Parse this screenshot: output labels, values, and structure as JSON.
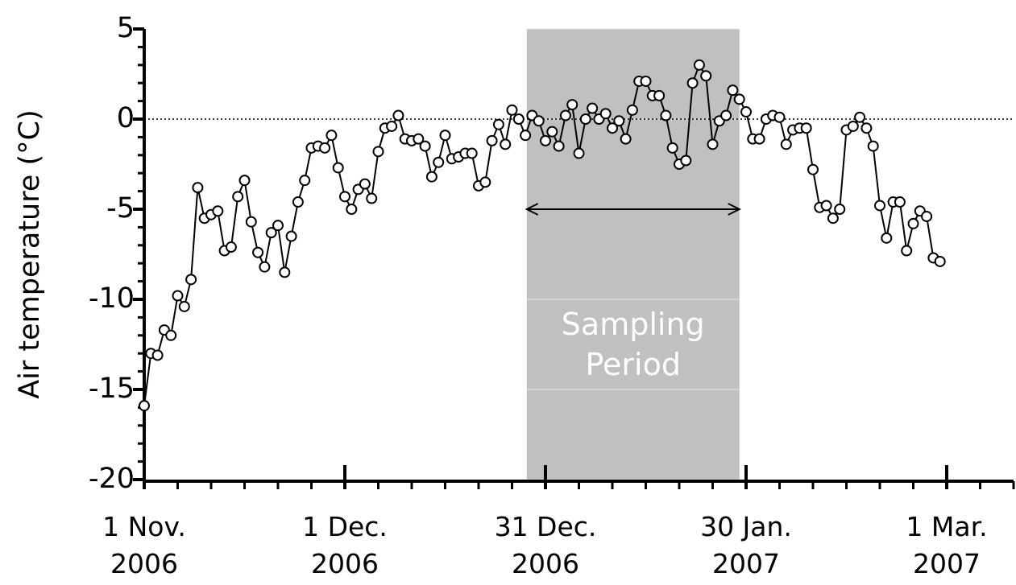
{
  "chart_data": {
    "type": "line",
    "y_label": "Air temperature (°C)",
    "x": [
      0,
      1,
      2,
      3,
      4,
      5,
      6,
      7,
      8,
      9,
      10,
      11,
      12,
      13,
      14,
      15,
      16,
      17,
      18,
      19,
      20,
      21,
      22,
      23,
      24,
      25,
      26,
      27,
      28,
      29,
      30,
      31,
      32,
      33,
      34,
      35,
      36,
      37,
      38,
      39,
      40,
      41,
      42,
      43,
      44,
      45,
      46,
      47,
      48,
      49,
      50,
      51,
      52,
      53,
      54,
      55,
      56,
      57,
      58,
      59,
      60,
      61,
      62,
      63,
      64,
      65,
      66,
      67,
      68,
      69,
      70,
      71,
      72,
      73,
      74,
      75,
      76,
      77,
      78,
      79,
      80,
      81,
      82,
      83,
      84,
      85,
      86,
      87,
      88,
      89,
      90,
      91,
      92,
      93,
      94,
      95,
      96,
      97,
      98,
      99,
      100,
      101,
      102,
      103,
      104,
      105,
      106,
      107,
      108,
      109,
      110,
      111,
      112,
      113,
      114,
      115,
      116,
      117,
      118,
      119
    ],
    "series": [
      {
        "color": "#000000",
        "values": [
          -15.9,
          -13.0,
          -13.1,
          -11.7,
          -12.0,
          -9.8,
          -10.4,
          -8.9,
          -3.8,
          -5.5,
          -5.3,
          -5.1,
          -7.3,
          -7.1,
          -4.3,
          -3.4,
          -5.7,
          -7.4,
          -8.2,
          -6.3,
          -5.9,
          -8.5,
          -6.5,
          -4.6,
          -3.4,
          -1.6,
          -1.5,
          -1.6,
          -0.9,
          -2.7,
          -4.3,
          -5.0,
          -3.9,
          -3.6,
          -4.4,
          -1.8,
          -0.5,
          -0.4,
          0.2,
          -1.1,
          -1.2,
          -1.1,
          -1.5,
          -3.2,
          -2.4,
          -0.9,
          -2.2,
          -2.1,
          -1.9,
          -1.9,
          -3.7,
          -3.5,
          -1.2,
          -0.3,
          -1.4,
          0.5,
          0.0,
          -0.9,
          0.2,
          -0.1,
          -1.2,
          -0.7,
          -1.5,
          0.2,
          0.8,
          -1.9,
          0.0,
          0.6,
          0.0,
          0.3,
          -0.5,
          -0.1,
          -1.1,
          0.5,
          2.1,
          2.1,
          1.3,
          1.3,
          0.2,
          -1.6,
          -2.5,
          -2.3,
          2.0,
          3.0,
          2.4,
          -1.4,
          -0.1,
          0.2,
          1.6,
          1.1,
          0.4,
          -1.1,
          -1.1,
          0.0,
          0.2,
          0.1,
          -1.4,
          -0.6,
          -0.5,
          -0.5,
          -2.8,
          -4.9,
          -4.8,
          -5.5,
          -5.0,
          -0.6,
          -0.4,
          0.1,
          -0.5,
          -1.5,
          -4.8,
          -6.6,
          -4.6,
          -4.6,
          -7.3,
          -5.8,
          -5.1,
          -5.4,
          -7.7,
          -7.9
        ]
      }
    ],
    "xlim": [
      0,
      130
    ],
    "xticks": [
      {
        "value": 0,
        "label": "1 Nov.\n2006"
      },
      {
        "value": 30,
        "label": "1 Dec.\n2006"
      },
      {
        "value": 60,
        "label": "31 Dec.\n2006"
      },
      {
        "value": 90,
        "label": "30 Jan.\n2007"
      },
      {
        "value": 120,
        "label": "1 Mar.\n2007"
      }
    ],
    "x_minor_step": 5,
    "ylim": [
      -20,
      5
    ],
    "yticks": [
      -20,
      -15,
      -10,
      -5,
      0,
      5
    ],
    "y_minor_step": 1,
    "reference_line": 0,
    "annotation": {
      "text": "Sampling\nPeriod",
      "span": [
        57.2,
        89
      ],
      "arrow_y": -5,
      "color": "#c0c0c0"
    }
  }
}
